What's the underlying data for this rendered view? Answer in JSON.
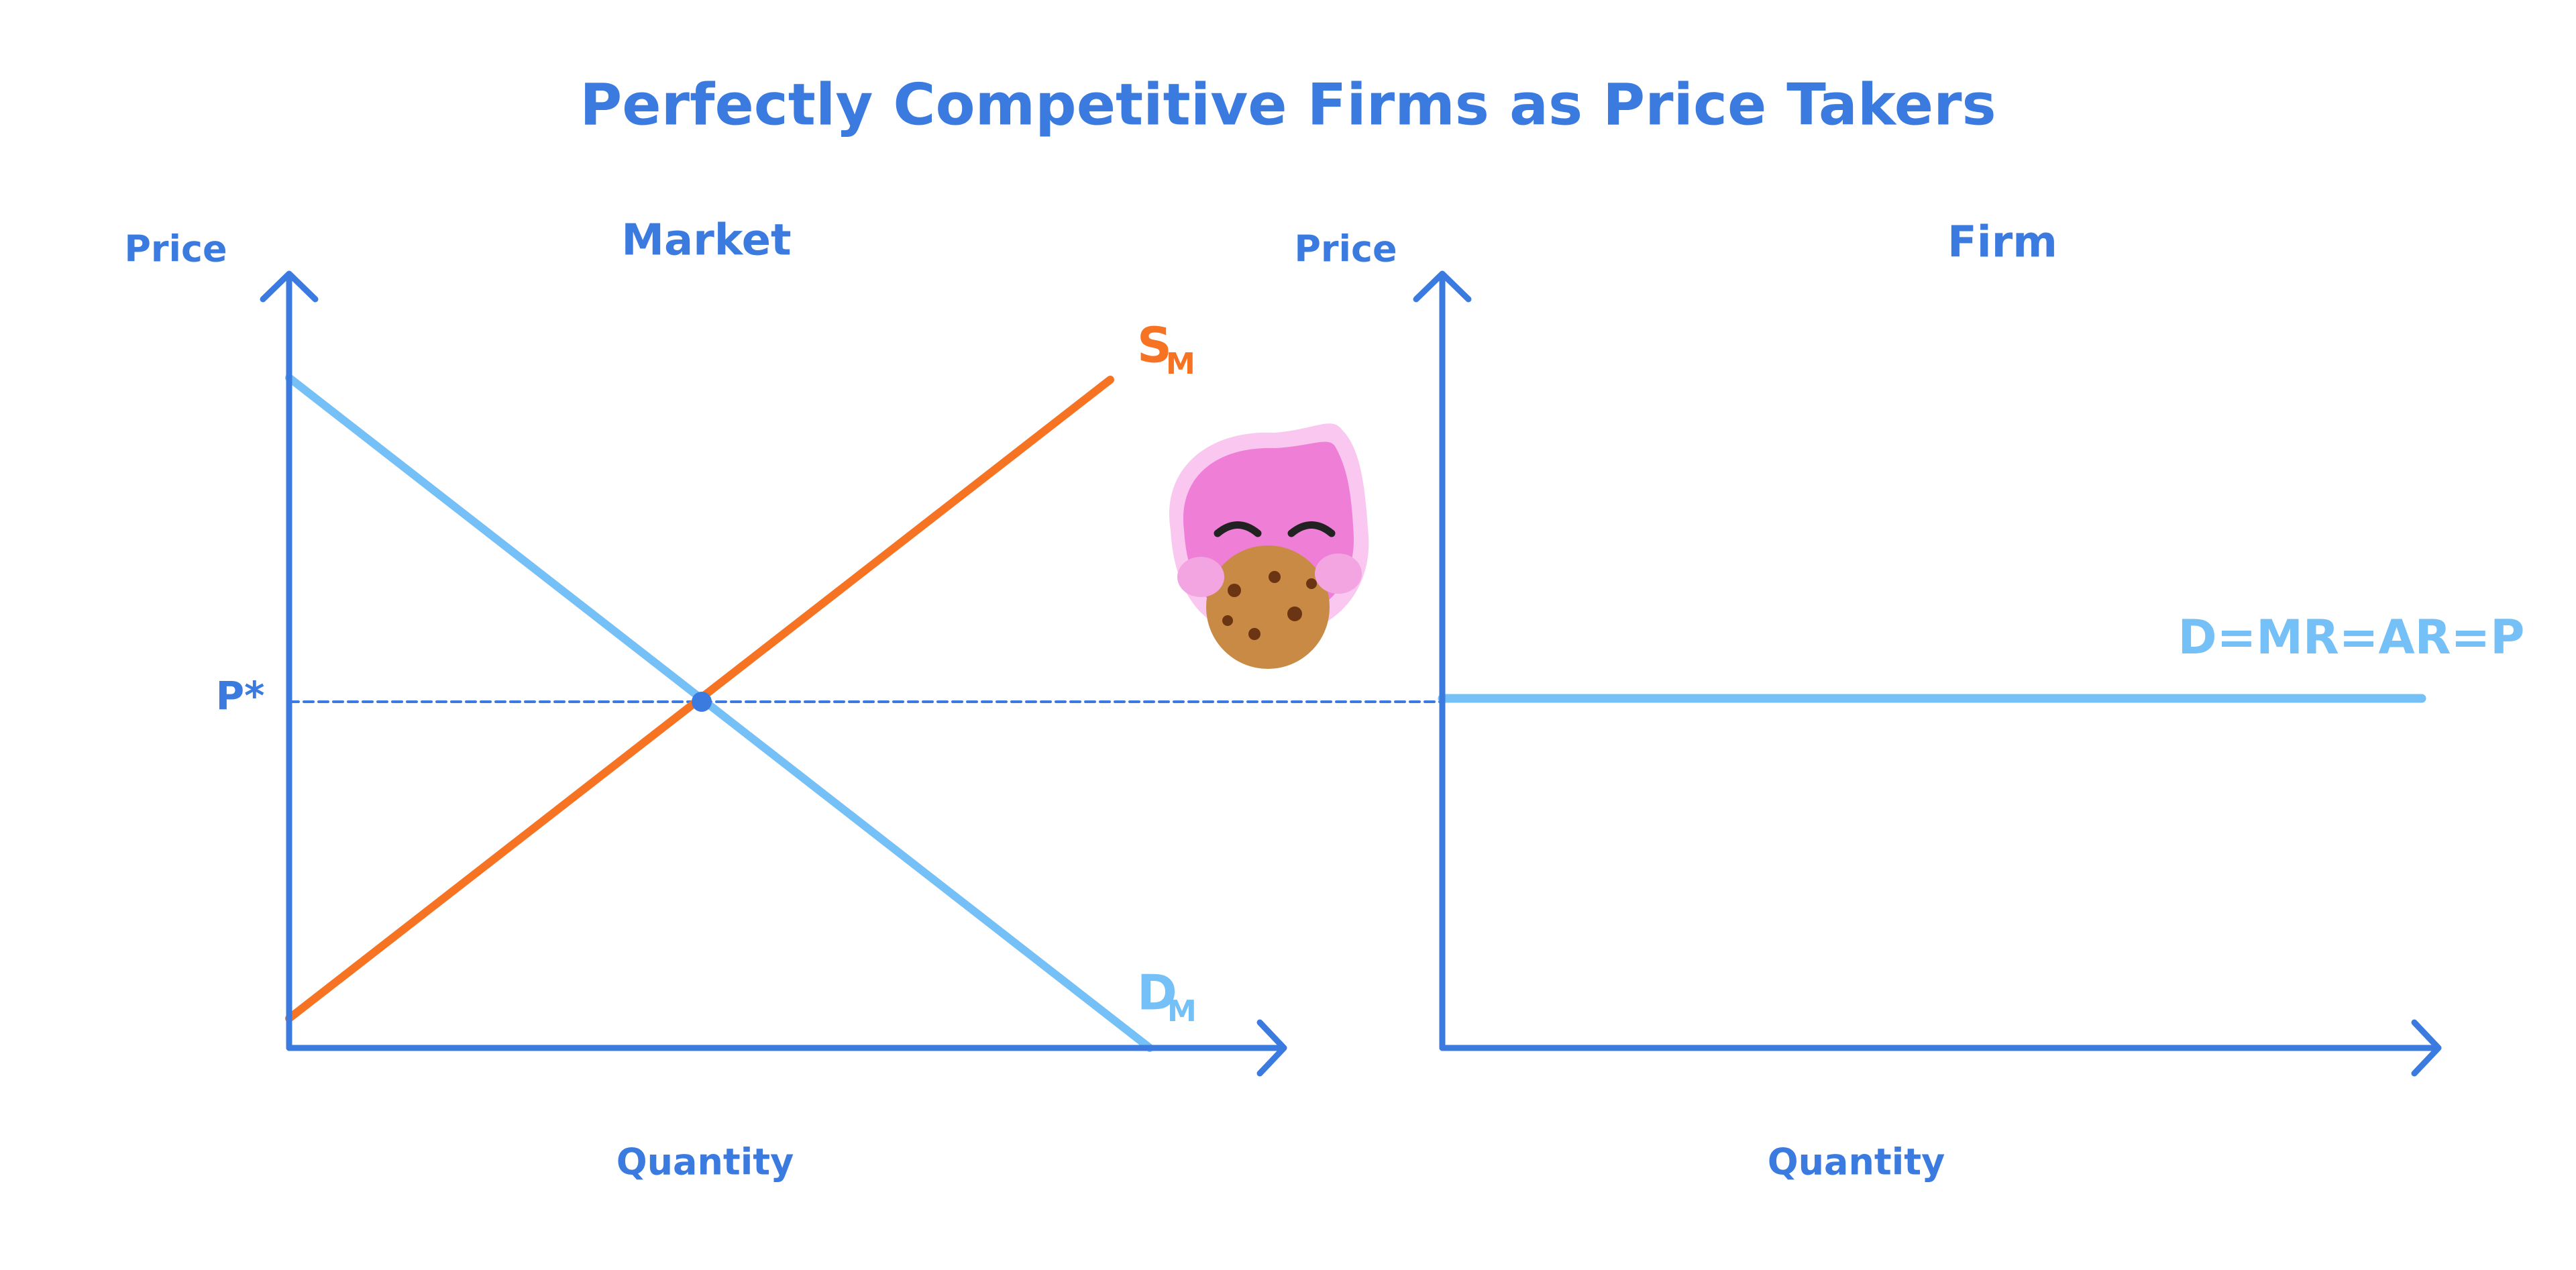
{
  "title": "Perfectly Competitive Firms as Price Takers",
  "market": {
    "title": "Market",
    "y_axis_label": "Price",
    "x_axis_label": "Quantity",
    "supply_label": {
      "main": "S",
      "sub": "M"
    },
    "demand_label": {
      "main": "D",
      "sub": "M"
    },
    "price_label": "P*"
  },
  "firm": {
    "title": "Firm",
    "y_axis_label": "Price",
    "x_axis_label": "Quantity",
    "demand_label": "D=MR=AR=P"
  }
}
